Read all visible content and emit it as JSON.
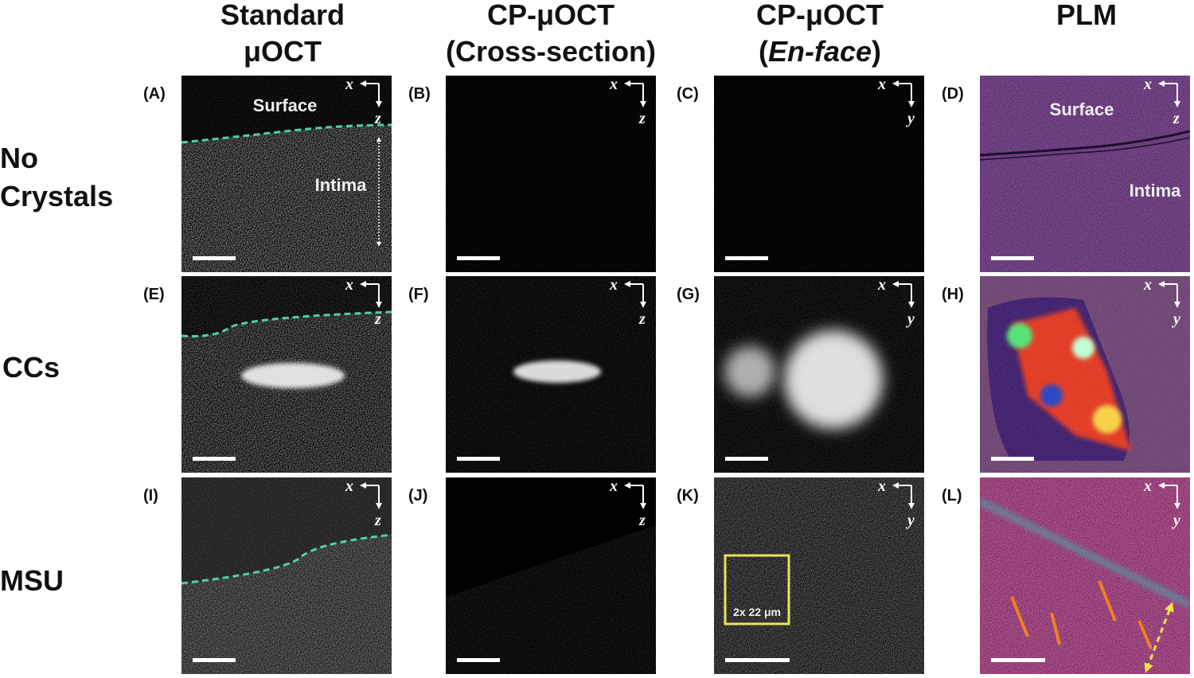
{
  "columns": [
    {
      "lines": [
        "Standard",
        "μOCT"
      ]
    },
    {
      "lines": [
        "CP-μOCT",
        "(Cross-section)"
      ]
    },
    {
      "lines": [
        "CP-μOCT",
        [
          "(",
          "En-face",
          ")"
        ]
      ]
    },
    {
      "lines": [
        "PLM"
      ]
    }
  ],
  "rows": [
    {
      "lines": [
        "No",
        "Crystals"
      ]
    },
    {
      "lines": [
        "CCs"
      ]
    },
    {
      "lines": [
        "MSU"
      ]
    }
  ],
  "panels": [
    {
      "label": "(A)",
      "axes": [
        "x",
        "z"
      ],
      "annotations": [
        "Surface",
        "Intima"
      ]
    },
    {
      "label": "(B)",
      "axes": [
        "x",
        "z"
      ]
    },
    {
      "label": "(C)",
      "axes": [
        "x",
        "y"
      ]
    },
    {
      "label": "(D)",
      "axes": [
        "x",
        "z"
      ],
      "annotations": [
        "Surface",
        "Intima"
      ]
    },
    {
      "label": "(E)",
      "axes": [
        "x",
        "z"
      ]
    },
    {
      "label": "(F)",
      "axes": [
        "x",
        "z"
      ]
    },
    {
      "label": "(G)",
      "axes": [
        "x",
        "y"
      ]
    },
    {
      "label": "(H)",
      "axes": [
        "x",
        "y"
      ]
    },
    {
      "label": "(I)",
      "axes": [
        "x",
        "z"
      ]
    },
    {
      "label": "(J)",
      "axes": [
        "x",
        "z"
      ]
    },
    {
      "label": "(K)",
      "axes": [
        "x",
        "y"
      ],
      "annotations": [
        "2x 22 μm"
      ]
    },
    {
      "label": "(L)",
      "axes": [
        "x",
        "y"
      ]
    }
  ]
}
